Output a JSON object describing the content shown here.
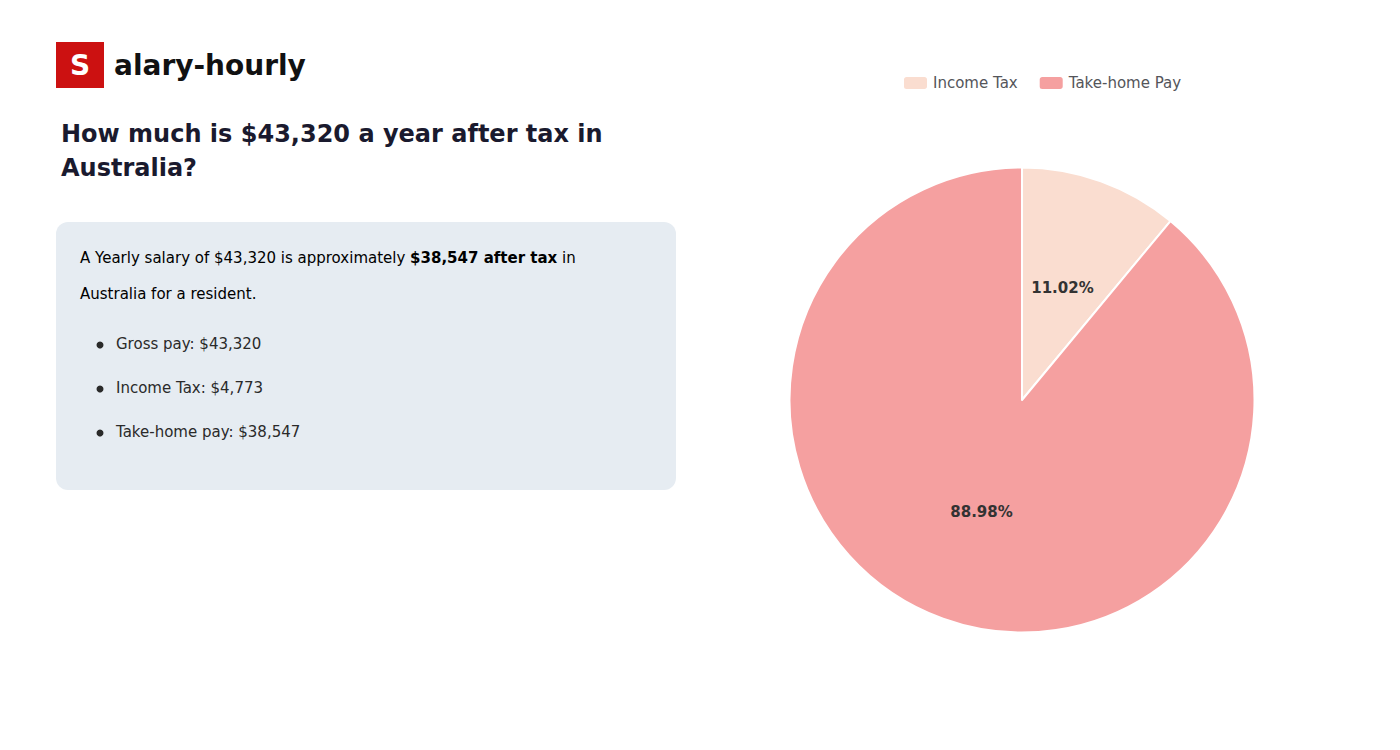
{
  "chart_data": {
    "type": "pie",
    "title": "How much is $43,320 a year after tax in\nAustralia?",
    "categories": [
      "Income Tax",
      "Take-home Pay"
    ],
    "values": [
      11.02,
      88.98
    ],
    "value_labels": [
      "11.02%",
      "88.98%"
    ],
    "colors": [
      "#faddd0",
      "#f5a0a0"
    ],
    "data_labels": true,
    "legend": "top",
    "annotations": {
      "logo": [
        {
          "text": "S",
          "color": "#cc1111"
        },
        {
          "text": "alary-hourly"
        }
      ],
      "info": [
        [
          {
            "text": "A Yearly salary of $43,320 is approximately "
          },
          {
            "text": "$38,547 after tax",
            "color": "#cc1111"
          },
          {
            "text": " in"
          }
        ],
        [
          {
            "text": "Australia for a resident."
          }
        ]
      ],
      "bullets": [
        "Gross pay: $43,320",
        "Income Tax: $4,773",
        "Take-home pay: $38,547"
      ]
    }
  }
}
